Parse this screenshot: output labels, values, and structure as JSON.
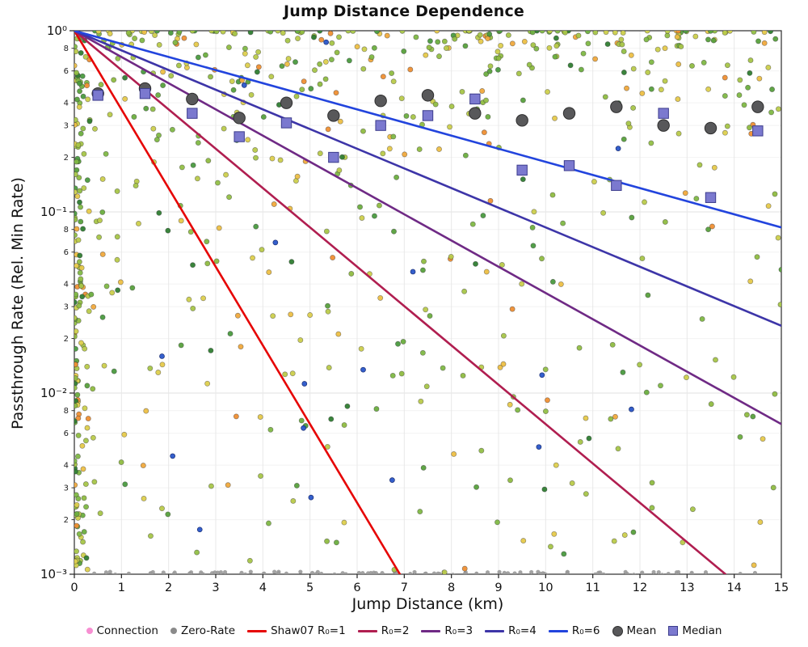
{
  "chart_data": {
    "type": "scatter",
    "title": "Jump Distance Dependence",
    "xlabel": "Jump Distance (km)",
    "ylabel": "Passthrough Rate (Rel. Min Rate)",
    "xlim": [
      0,
      15
    ],
    "ylim": [
      0.001,
      1.0
    ],
    "ylog": true,
    "grid": true,
    "legend_position": "bottom",
    "x_ticks": [
      "0",
      "1",
      "2",
      "3",
      "4",
      "5",
      "6",
      "7",
      "8",
      "9",
      "10",
      "11",
      "12",
      "13",
      "14",
      "15"
    ],
    "y_major_ticks": [
      1,
      0.1,
      0.01,
      0.001
    ],
    "y_major_labels": [
      "10⁰",
      "10⁻¹",
      "10⁻²",
      "10⁻³"
    ],
    "y_minor_mults": [
      8,
      6,
      4,
      3,
      2
    ],
    "model_lines": [
      {
        "label": "Shaw07 R₀=1",
        "r0": 1,
        "color": "#e60505"
      },
      {
        "label": "R₀=2",
        "r0": 2,
        "color": "#b01e50"
      },
      {
        "label": "R₀=3",
        "r0": 3,
        "color": "#6f2a85"
      },
      {
        "label": "R₀=4",
        "r0": 4,
        "color": "#3d35a8"
      },
      {
        "label": "R₀=6",
        "r0": 6,
        "color": "#2244dd"
      }
    ],
    "mean_series": {
      "label": "Mean",
      "color": "#58585a",
      "x": [
        0.5,
        1.5,
        2.5,
        3.5,
        4.5,
        5.5,
        6.5,
        7.5,
        8.5,
        9.5,
        10.5,
        11.5,
        12.5,
        13.5,
        14.5
      ],
      "y": [
        0.45,
        0.48,
        0.42,
        0.33,
        0.4,
        0.34,
        0.41,
        0.44,
        0.35,
        0.32,
        0.35,
        0.38,
        0.3,
        0.29,
        0.38
      ]
    },
    "median_series": {
      "label": "Median",
      "color": "#7b79cf",
      "x": [
        0.5,
        1.5,
        2.5,
        3.5,
        4.5,
        5.5,
        6.5,
        7.5,
        8.5,
        9.5,
        10.5,
        11.5,
        12.5,
        13.5,
        14.5
      ],
      "y": [
        0.44,
        0.45,
        0.35,
        0.26,
        0.31,
        0.2,
        0.3,
        0.34,
        0.42,
        0.17,
        0.18,
        0.14,
        0.35,
        0.12,
        0.28
      ]
    },
    "scatter": {
      "seed": 1337,
      "n_main": 600,
      "n_left": 150,
      "n_blue": 16,
      "n_zero": 95,
      "point_radius": 3.1,
      "palette": [
        "#2f7d32",
        "#4a9a3f",
        "#57a03c",
        "#6cae3f",
        "#7fb844",
        "#8fbc41",
        "#92bf46",
        "#a6c548",
        "#a6c548",
        "#b9ca4a",
        "#b9ca4a",
        "#cccf4c",
        "#ddcf4d",
        "#e6c94a",
        "#edbf45",
        "#f0a93c",
        "#ef8f33",
        "#7fb844",
        "#8fbc41",
        "#cccf4c"
      ],
      "blue_color": "#2956c9",
      "zero_color": "#999999"
    },
    "legend": [
      {
        "label": "Connection",
        "marker": "dot",
        "color": "#f78fd2"
      },
      {
        "label": "Zero-Rate",
        "marker": "dot",
        "color": "#8a8a8a"
      },
      {
        "label": "Shaw07 R₀=1",
        "marker": "line",
        "color": "#e60505"
      },
      {
        "label": "R₀=2",
        "marker": "line",
        "color": "#b01e50"
      },
      {
        "label": "R₀=3",
        "marker": "line",
        "color": "#6f2a85"
      },
      {
        "label": "R₀=4",
        "marker": "line",
        "color": "#3d35a8"
      },
      {
        "label": "R₀=6",
        "marker": "line",
        "color": "#2244dd"
      },
      {
        "label": "Mean",
        "marker": "circle",
        "color": "#58585a"
      },
      {
        "label": "Median",
        "marker": "square",
        "color": "#7b79cf"
      }
    ]
  }
}
